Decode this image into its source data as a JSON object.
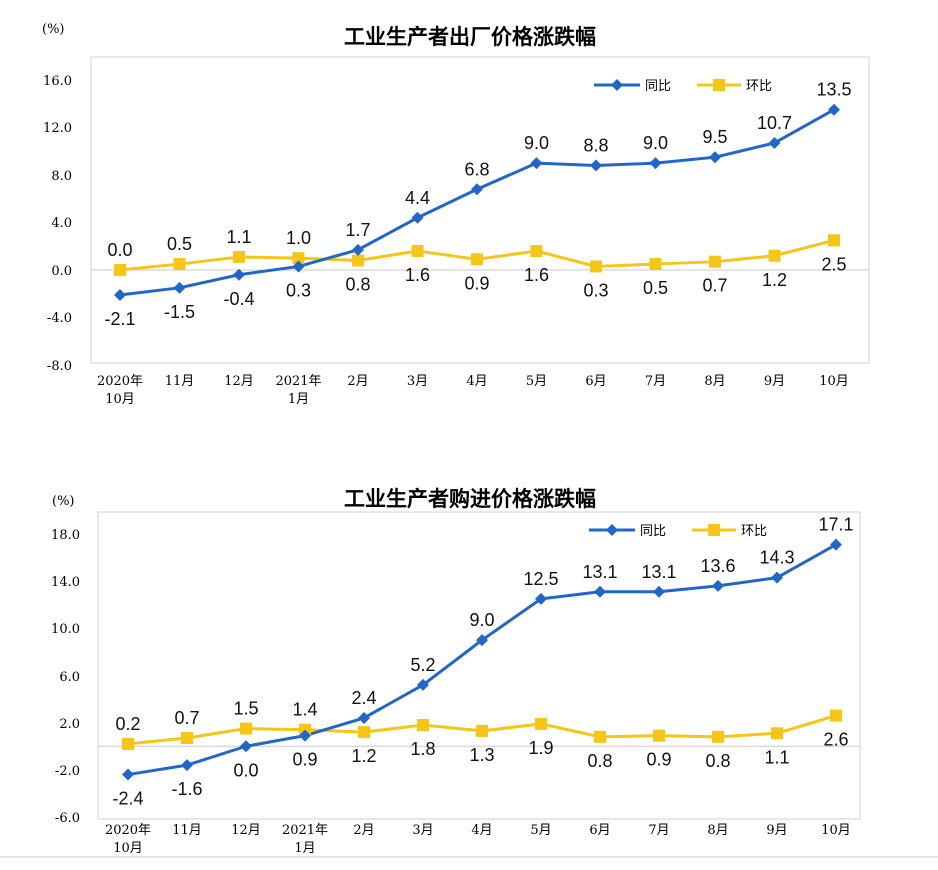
{
  "chart_data": [
    {
      "type": "line",
      "title": "工业生产者出厂价格涨跌幅",
      "unit_label": "(%)",
      "categories": [
        [
          "2020年",
          "10月"
        ],
        [
          "11月"
        ],
        [
          "12月"
        ],
        [
          "2021年",
          "1月"
        ],
        [
          "2月"
        ],
        [
          "3月"
        ],
        [
          "4月"
        ],
        [
          "5月"
        ],
        [
          "6月"
        ],
        [
          "7月"
        ],
        [
          "8月"
        ],
        [
          "9月"
        ],
        [
          "10月"
        ]
      ],
      "yticks": [
        "16.0",
        "12.0",
        "8.0",
        "4.0",
        "0.0",
        "-4.0",
        "-8.0"
      ],
      "ylim": [
        -8,
        16
      ],
      "legend": "top-right",
      "series": [
        {
          "name": "同比",
          "color": "#2266c8",
          "marker": "diamond",
          "values": [
            -2.1,
            -1.5,
            -0.4,
            0.3,
            1.7,
            4.4,
            6.8,
            9.0,
            8.8,
            9.0,
            9.5,
            10.7,
            13.5
          ],
          "labels": [
            "-2.1",
            "-1.5",
            "-0.4",
            "0.3",
            "1.7",
            "4.4",
            "6.8",
            "9.0",
            "8.8",
            "9.0",
            "9.5",
            "10.7",
            "13.5"
          ]
        },
        {
          "name": "环比",
          "color": "#f5c518",
          "marker": "square",
          "values": [
            0.0,
            0.5,
            1.1,
            1.0,
            0.8,
            1.6,
            0.9,
            1.6,
            0.3,
            0.5,
            0.7,
            1.2,
            2.5
          ],
          "labels": [
            "0.0",
            "0.5",
            "1.1",
            "1.0",
            "0.8",
            "1.6",
            "0.9",
            "1.6",
            "0.3",
            "0.5",
            "0.7",
            "1.2",
            "2.5"
          ]
        }
      ]
    },
    {
      "type": "line",
      "title": "工业生产者购进价格涨跌幅",
      "unit_label": "(%)",
      "categories": [
        [
          "2020年",
          "10月"
        ],
        [
          "11月"
        ],
        [
          "12月"
        ],
        [
          "2021年",
          "1月"
        ],
        [
          "2月"
        ],
        [
          "3月"
        ],
        [
          "4月"
        ],
        [
          "5月"
        ],
        [
          "6月"
        ],
        [
          "7月"
        ],
        [
          "8月"
        ],
        [
          "9月"
        ],
        [
          "10月"
        ]
      ],
      "yticks": [
        "18.0",
        "14.0",
        "10.0",
        "6.0",
        "2.0",
        "-2.0",
        "-6.0"
      ],
      "ylim": [
        -6,
        18
      ],
      "legend": "top-right",
      "series": [
        {
          "name": "同比",
          "color": "#2266c8",
          "marker": "diamond",
          "values": [
            -2.4,
            -1.6,
            0.0,
            0.9,
            2.4,
            5.2,
            9.0,
            12.5,
            13.1,
            13.1,
            13.6,
            14.3,
            17.1
          ],
          "labels": [
            "-2.4",
            "-1.6",
            "0.0",
            "0.9",
            "2.4",
            "5.2",
            "9.0",
            "12.5",
            "13.1",
            "13.1",
            "13.6",
            "14.3",
            "17.1"
          ]
        },
        {
          "name": "环比",
          "color": "#f5c518",
          "marker": "square",
          "values": [
            0.2,
            0.7,
            1.5,
            1.4,
            1.2,
            1.8,
            1.3,
            1.9,
            0.8,
            0.9,
            0.8,
            1.1,
            2.6
          ],
          "labels": [
            "0.2",
            "0.7",
            "1.5",
            "1.4",
            "1.2",
            "1.8",
            "1.3",
            "1.9",
            "0.8",
            "0.9",
            "0.8",
            "1.1",
            "2.6"
          ]
        }
      ]
    }
  ]
}
